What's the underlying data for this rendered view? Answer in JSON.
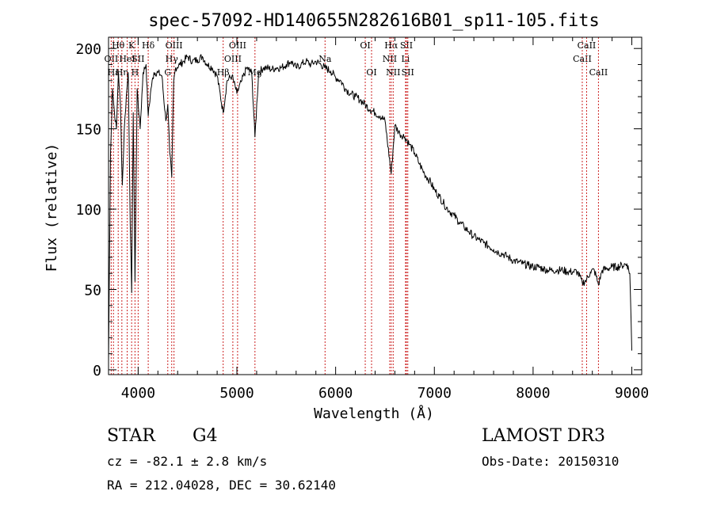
{
  "chart_data": {
    "type": "line",
    "title": "spec-57092-HD140655N282616B01_sp11-105.fits",
    "xlabel": "Wavelength (Å)",
    "ylabel": "Flux (relative)",
    "xlim": [
      3700,
      9100
    ],
    "ylim": [
      -3,
      207
    ],
    "xticks": [
      4000,
      5000,
      6000,
      7000,
      8000,
      9000
    ],
    "yticks": [
      0,
      50,
      100,
      150,
      200
    ],
    "line_color": "#000000",
    "marker_color": "#cc2222",
    "series": [
      {
        "name": "spectrum",
        "x": [
          3700,
          3720,
          3740,
          3760,
          3780,
          3800,
          3820,
          3840,
          3860,
          3880,
          3900,
          3920,
          3934,
          3950,
          3968,
          3990,
          4020,
          4050,
          4080,
          4102,
          4130,
          4160,
          4200,
          4240,
          4280,
          4300,
          4320,
          4340,
          4360,
          4380,
          4420,
          4460,
          4500,
          4550,
          4600,
          4650,
          4700,
          4750,
          4800,
          4861,
          4900,
          4950,
          5000,
          5050,
          5100,
          5150,
          5183,
          5220,
          5270,
          5300,
          5350,
          5400,
          5450,
          5500,
          5550,
          5600,
          5650,
          5700,
          5750,
          5800,
          5850,
          5890,
          5950,
          6000,
          6050,
          6100,
          6150,
          6200,
          6250,
          6300,
          6350,
          6400,
          6450,
          6500,
          6563,
          6600,
          6650,
          6700,
          6750,
          6800,
          6850,
          6900,
          6950,
          7000,
          7050,
          7100,
          7150,
          7200,
          7250,
          7300,
          7350,
          7400,
          7450,
          7500,
          7550,
          7600,
          7650,
          7700,
          7750,
          7800,
          7850,
          7900,
          7950,
          8000,
          8050,
          8100,
          8150,
          8200,
          8250,
          8300,
          8350,
          8400,
          8450,
          8498,
          8542,
          8580,
          8620,
          8662,
          8700,
          8750,
          8800,
          8850,
          8900,
          8950,
          8980,
          9000
        ],
        "y": [
          5,
          135,
          175,
          160,
          150,
          185,
          165,
          115,
          150,
          170,
          185,
          90,
          48,
          160,
          55,
          175,
          150,
          185,
          190,
          158,
          175,
          185,
          185,
          183,
          155,
          165,
          135,
          120,
          180,
          188,
          190,
          192,
          195,
          192,
          193,
          195,
          190,
          188,
          183,
          160,
          180,
          183,
          172,
          180,
          188,
          185,
          145,
          185,
          188,
          188,
          187,
          188,
          188,
          190,
          192,
          188,
          190,
          192,
          190,
          192,
          190,
          188,
          186,
          182,
          180,
          175,
          172,
          170,
          168,
          165,
          162,
          160,
          158,
          155,
          122,
          152,
          147,
          145,
          140,
          135,
          128,
          122,
          118,
          112,
          108,
          103,
          99,
          96,
          92,
          89,
          86,
          83,
          81,
          79,
          77,
          75,
          73,
          72,
          70,
          68,
          67,
          66,
          65,
          64,
          64,
          63,
          62,
          62,
          62,
          62,
          61,
          61,
          61,
          54,
          56,
          61,
          62,
          53,
          62,
          63,
          64,
          64,
          65,
          66,
          60,
          12
        ]
      }
    ],
    "line_markers": [
      {
        "w": 3727,
        "labels": [
          "OII"
        ],
        "row": 1
      },
      {
        "w": 3750,
        "labels": [
          "Hε"
        ],
        "row": 2
      },
      {
        "w": 3798,
        "labels": [
          "Hθ"
        ],
        "row": 0
      },
      {
        "w": 3835,
        "labels": [
          "Hη"
        ],
        "row": 2
      },
      {
        "w": 3889,
        "labels": [
          "HeI"
        ],
        "row": 1
      },
      {
        "w": 3934,
        "labels": [
          "K"
        ],
        "row": 0
      },
      {
        "w": 3968,
        "labels": [
          "H"
        ],
        "row": 2
      },
      {
        "w": 4000,
        "labels": [
          "SII"
        ],
        "row": 1
      },
      {
        "w": 4102,
        "labels": [
          "Hδ"
        ],
        "row": 0
      },
      {
        "w": 4300,
        "labels": [
          "G"
        ],
        "row": 2
      },
      {
        "w": 4340,
        "labels": [
          "Hγ"
        ],
        "row": 1
      },
      {
        "w": 4363,
        "labels": [
          "OIII"
        ],
        "row": 0
      },
      {
        "w": 4861,
        "labels": [
          "Hβ"
        ],
        "row": 2
      },
      {
        "w": 4959,
        "labels": [
          "OIII"
        ],
        "row": 1
      },
      {
        "w": 5007,
        "labels": [
          "OIII"
        ],
        "row": 0
      },
      {
        "w": 5183,
        "labels": [
          "Mg"
        ],
        "row": 2
      },
      {
        "w": 5893,
        "labels": [
          "Na"
        ],
        "row": 1
      },
      {
        "w": 6300,
        "labels": [
          "OI"
        ],
        "row": 0
      },
      {
        "w": 6364,
        "labels": [
          "OI"
        ],
        "row": 2
      },
      {
        "w": 6548,
        "labels": [
          "NII"
        ],
        "row": 1
      },
      {
        "w": 6563,
        "labels": [
          "Hα"
        ],
        "row": 0
      },
      {
        "w": 6583,
        "labels": [
          "NII"
        ],
        "row": 2
      },
      {
        "w": 6708,
        "labels": [
          "Li"
        ],
        "row": 1
      },
      {
        "w": 6717,
        "labels": [
          "SII"
        ],
        "row": 0
      },
      {
        "w": 6731,
        "labels": [
          "SII"
        ],
        "row": 2
      },
      {
        "w": 8498,
        "labels": [
          "CaII"
        ],
        "row": 1
      },
      {
        "w": 8542,
        "labels": [
          "CaII"
        ],
        "row": 0
      },
      {
        "w": 8662,
        "labels": [
          "CaII"
        ],
        "row": 2
      }
    ]
  },
  "info": {
    "class_label": "STAR",
    "subclass_label": "G4",
    "survey": "LAMOST DR3",
    "cz": "cz = -82.1 ± 2.8 km/s",
    "obs_date": "Obs-Date: 20150310",
    "coords": "RA = 212.04028, DEC =  30.62140"
  }
}
